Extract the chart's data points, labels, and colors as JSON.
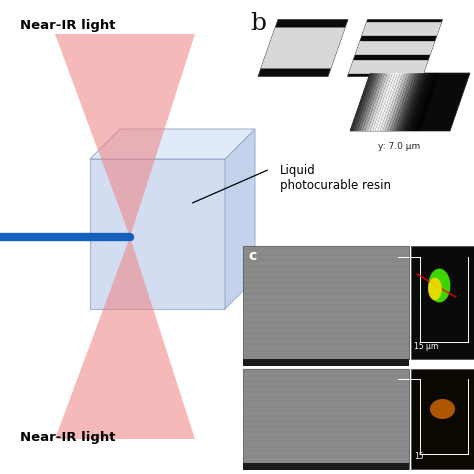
{
  "background_color": "#ffffff",
  "left_panel": {
    "near_ir_top_text": "Near-IR light",
    "near_ir_bottom_text": "Near-IR light",
    "label_liquid": "Liquid\nphotocurable resin",
    "cone_color": "#f08080",
    "cone_alpha": 0.55,
    "box_color_front": "#ccd8f0",
    "box_color_top": "#dde8f8",
    "box_edge_color": "#99aac8",
    "fiber_color": "#1560bd"
  },
  "top_right": {
    "label": "b",
    "annotation": "y: 7.0 μm"
  },
  "bottom_right": {
    "label": "c",
    "ann1": "15 μm",
    "ann2": "15"
  }
}
